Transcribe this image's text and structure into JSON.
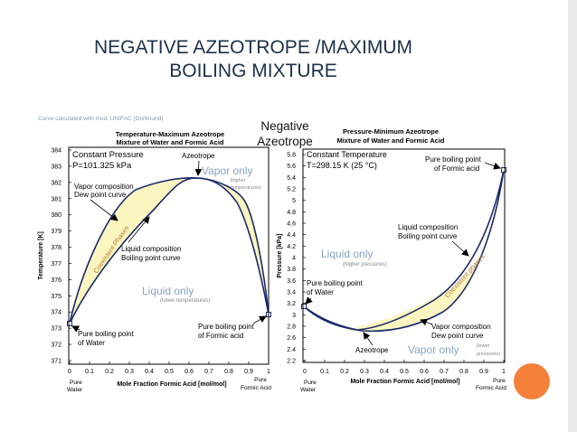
{
  "slide": {
    "title_line1": "NEGATIVE AZEOTROPE /MAXIMUM",
    "title_line2": "BOILING MIXTURE",
    "caption_line1": "Negative",
    "caption_line2": "Azeotrope",
    "source_note": "Curve calculated with mod. UNIFAC (Dortmund)"
  },
  "left": {
    "title_line1": "Temperature-Maximum Azeotrope",
    "title_line2": "Mixture of Water and Formic Acid",
    "cond_line1": "Constant Pressure",
    "cond_line2": "P=101.325 kPa",
    "azeotrope": "Azeotrope",
    "vapor_only": "Vapor only",
    "vapor_note1": "(higher",
    "vapor_note2": "temperatures)",
    "vapor_comp1": "Vapor composition",
    "vapor_comp2": "Dew point curve",
    "coexistent": "Coexistent Phases",
    "liq_comp1": "Liquid composition",
    "liq_comp2": "Boiling point curve",
    "liquid_only": "Liquid only",
    "liquid_note": "(lower temperatures)",
    "pbp_water1": "Pure boiling point",
    "pbp_water2": "of Water",
    "pbp_acid1": "Pure boiling point",
    "pbp_acid2": "of Formic acid",
    "ylabel": "Temperature [K]",
    "xlabel": "Mole Fraction Formic Acid [mol/mol]",
    "left_end1": "Pure",
    "left_end2": "Water",
    "right_end1": "Pure",
    "right_end2": "Formic Acid",
    "y_ticks": [
      "384",
      "383",
      "382",
      "381",
      "380",
      "379",
      "378",
      "377",
      "376",
      "375",
      "374",
      "373",
      "372",
      "371"
    ],
    "x_ticks": [
      "0",
      "0.1",
      "0.2",
      "0.3",
      "0.4",
      "0.5",
      "0.6",
      "0.7",
      "0.8",
      "0.9",
      "1"
    ]
  },
  "right": {
    "title_line1": "Pressure-Minimum Azeotrope",
    "title_line2": "Mixture of Water and Formic Acid",
    "cond_line1": "Constant Temperature",
    "cond_line2": "T=298.15 K (25 °C)",
    "pbp_acid1": "Pure boiling point",
    "pbp_acid2": "of Formic acid",
    "liq_comp1": "Liquid composition",
    "liq_comp2": "Boiling point curve",
    "liquid_only": "Liquid only",
    "liquid_note": "(higher pressures)",
    "pbp_water1": "Pure boiling point",
    "pbp_water2": "of Water",
    "coexistent": "Coexistent phases",
    "vapor_comp1": "Vapor composition",
    "vapor_comp2": "Dew point curve",
    "azeotrope": "Azeotrope",
    "vapor_only": "Vapor only",
    "vapor_note1": "(lower",
    "vapor_note2": "pressures)",
    "ylabel": "Pressure [kPa]",
    "xlabel": "Mole Fraction Formic Acid [mol/mol]",
    "left_end1": "Pure",
    "left_end2": "Water",
    "right_end1": "Pure",
    "right_end2": "Formic Acid",
    "y_ticks": [
      "5.8",
      "5.6",
      "5.4",
      "5.2",
      "5",
      "4.8",
      "4.6",
      "4.4",
      "4.2",
      "4",
      "3.8",
      "3.6",
      "3.4",
      "3.2",
      "3",
      "2.8",
      "2.6",
      "2.4",
      "2.2"
    ],
    "x_ticks": [
      "0",
      "0.1",
      "0.2",
      "0.3",
      "0.4",
      "0.5",
      "0.6",
      "0.7",
      "0.8",
      "0.9",
      "1"
    ]
  }
}
